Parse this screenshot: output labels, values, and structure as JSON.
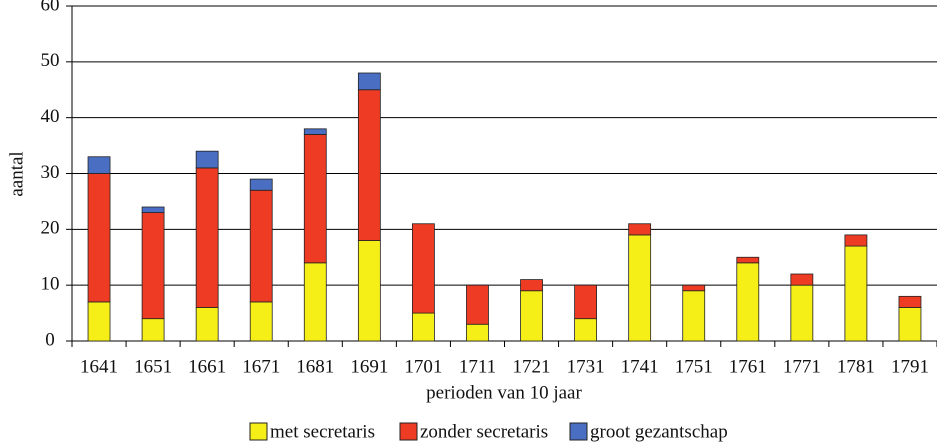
{
  "chart_data": {
    "type": "stacked_bar",
    "categories": [
      "1641",
      "1651",
      "1661",
      "1671",
      "1681",
      "1691",
      "1701",
      "1711",
      "1721",
      "1731",
      "1741",
      "1751",
      "1761",
      "1771",
      "1781",
      "1791"
    ],
    "series": [
      {
        "name": "met secretaris",
        "color": "#f5ef17",
        "values": [
          7,
          4,
          6,
          7,
          14,
          18,
          5,
          3,
          9,
          4,
          19,
          9,
          14,
          10,
          17,
          6
        ]
      },
      {
        "name": "zonder secretaris",
        "color": "#ee3b24",
        "values": [
          23,
          19,
          25,
          20,
          23,
          27,
          16,
          7,
          2,
          6,
          2,
          1,
          1,
          2,
          2,
          2
        ]
      },
      {
        "name": "groot gezantschap",
        "color": "#4a6fc2",
        "values": [
          3,
          1,
          3,
          2,
          1,
          3,
          0,
          0,
          0,
          0,
          0,
          0,
          0,
          0,
          0,
          0
        ]
      }
    ],
    "x_label": "perioden van 10 jaar",
    "y_label": "aantal",
    "ylim": [
      0,
      60
    ],
    "yticks": [
      0,
      10,
      20,
      30,
      40,
      50,
      60
    ],
    "grid": true,
    "legend": "bottom"
  }
}
